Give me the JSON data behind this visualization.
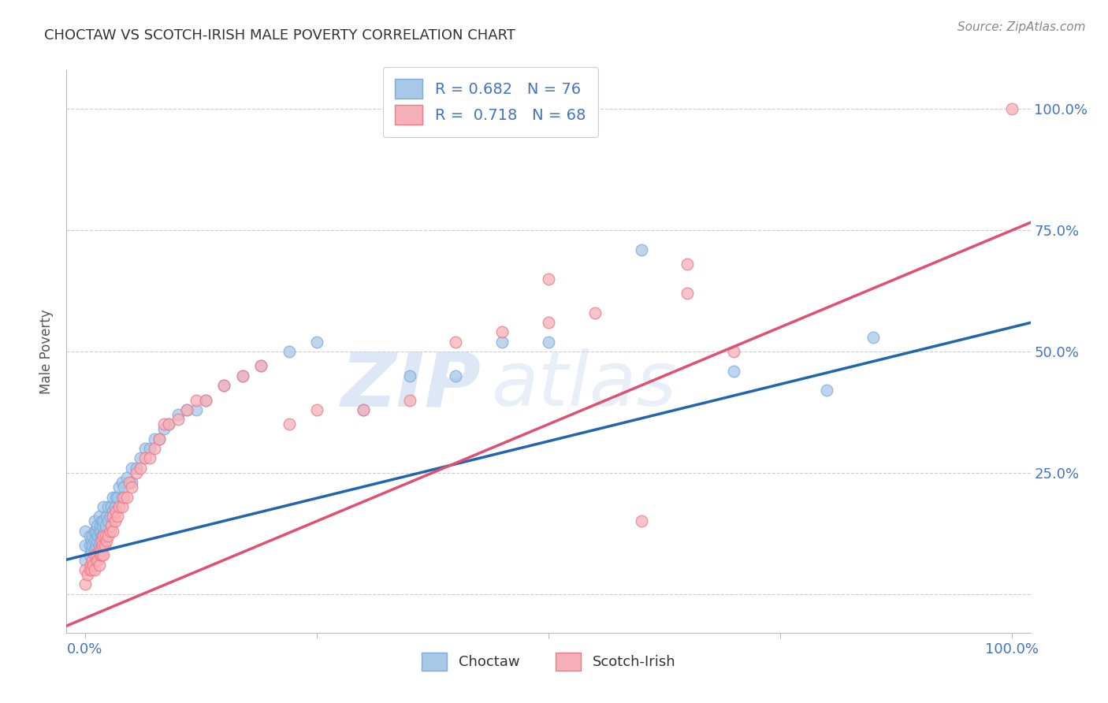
{
  "title": "CHOCTAW VS SCOTCH-IRISH MALE POVERTY CORRELATION CHART",
  "source": "Source: ZipAtlas.com",
  "ylabel": "Male Poverty",
  "xlim": [
    -0.02,
    1.02
  ],
  "ylim": [
    -0.08,
    1.08
  ],
  "x_ticks": [
    0.0,
    0.25,
    0.5,
    0.75,
    1.0
  ],
  "x_tick_labels": [
    "0.0%",
    "",
    "",
    "",
    "100.0%"
  ],
  "y_ticks": [
    0.0,
    0.25,
    0.5,
    0.75,
    1.0
  ],
  "y_tick_labels_right": [
    "",
    "25.0%",
    "50.0%",
    "75.0%",
    "100.0%"
  ],
  "choctaw_color": "#a8c8e8",
  "scotch_irish_color": "#f8b0b8",
  "choctaw_edge_color": "#7aacdc",
  "scotch_irish_edge_color": "#f07888",
  "choctaw_line_color": "#2166ac",
  "scotch_irish_line_color": "#e05070",
  "choctaw_R": 0.682,
  "choctaw_N": 76,
  "scotch_irish_R": 0.718,
  "scotch_irish_N": 68,
  "watermark_zip": "ZIP",
  "watermark_atlas": "atlas",
  "background_color": "#ffffff",
  "grid_color": "#cccccc",
  "tick_label_color": "#4472c4",
  "title_color": "#333333",
  "choctaw_line_intercept": 0.08,
  "choctaw_line_slope": 0.47,
  "scotch_irish_line_intercept": -0.05,
  "scotch_irish_line_slope": 0.8,
  "choctaw_scatter_x": [
    0.0,
    0.0,
    0.0,
    0.005,
    0.005,
    0.005,
    0.007,
    0.007,
    0.008,
    0.008,
    0.01,
    0.01,
    0.01,
    0.01,
    0.012,
    0.012,
    0.013,
    0.013,
    0.014,
    0.015,
    0.015,
    0.015,
    0.016,
    0.016,
    0.017,
    0.018,
    0.018,
    0.019,
    0.02,
    0.02,
    0.02,
    0.021,
    0.022,
    0.023,
    0.025,
    0.025,
    0.027,
    0.028,
    0.03,
    0.03,
    0.032,
    0.033,
    0.035,
    0.037,
    0.04,
    0.04,
    0.042,
    0.045,
    0.05,
    0.05,
    0.055,
    0.06,
    0.065,
    0.07,
    0.075,
    0.08,
    0.085,
    0.09,
    0.1,
    0.11,
    0.12,
    0.13,
    0.15,
    0.17,
    0.19,
    0.22,
    0.25,
    0.3,
    0.35,
    0.4,
    0.45,
    0.5,
    0.6,
    0.7,
    0.8,
    0.85
  ],
  "choctaw_scatter_y": [
    0.07,
    0.1,
    0.13,
    0.08,
    0.1,
    0.12,
    0.09,
    0.11,
    0.1,
    0.12,
    0.09,
    0.11,
    0.13,
    0.15,
    0.1,
    0.13,
    0.11,
    0.14,
    0.12,
    0.1,
    0.13,
    0.16,
    0.11,
    0.14,
    0.13,
    0.12,
    0.15,
    0.14,
    0.12,
    0.15,
    0.18,
    0.13,
    0.14,
    0.16,
    0.15,
    0.18,
    0.16,
    0.18,
    0.17,
    0.2,
    0.18,
    0.2,
    0.2,
    0.22,
    0.2,
    0.23,
    0.22,
    0.24,
    0.23,
    0.26,
    0.26,
    0.28,
    0.3,
    0.3,
    0.32,
    0.32,
    0.34,
    0.35,
    0.37,
    0.38,
    0.38,
    0.4,
    0.43,
    0.45,
    0.47,
    0.5,
    0.52,
    0.38,
    0.45,
    0.45,
    0.52,
    0.52,
    0.71,
    0.46,
    0.42,
    0.53
  ],
  "scotch_irish_scatter_x": [
    0.0,
    0.0,
    0.003,
    0.005,
    0.006,
    0.007,
    0.008,
    0.009,
    0.01,
    0.01,
    0.012,
    0.013,
    0.014,
    0.015,
    0.015,
    0.016,
    0.017,
    0.018,
    0.018,
    0.019,
    0.02,
    0.02,
    0.021,
    0.022,
    0.023,
    0.025,
    0.027,
    0.028,
    0.03,
    0.03,
    0.032,
    0.033,
    0.035,
    0.037,
    0.04,
    0.042,
    0.045,
    0.048,
    0.05,
    0.055,
    0.06,
    0.065,
    0.07,
    0.075,
    0.08,
    0.085,
    0.09,
    0.1,
    0.11,
    0.12,
    0.13,
    0.15,
    0.17,
    0.19,
    0.22,
    0.25,
    0.3,
    0.35,
    0.4,
    0.45,
    0.5,
    0.55,
    0.6,
    0.65,
    0.7,
    1.0,
    0.5,
    0.65
  ],
  "scotch_irish_scatter_y": [
    0.02,
    0.05,
    0.04,
    0.05,
    0.06,
    0.05,
    0.07,
    0.06,
    0.05,
    0.08,
    0.07,
    0.08,
    0.07,
    0.06,
    0.09,
    0.08,
    0.09,
    0.08,
    0.11,
    0.1,
    0.08,
    0.12,
    0.1,
    0.12,
    0.11,
    0.12,
    0.13,
    0.14,
    0.13,
    0.16,
    0.15,
    0.17,
    0.16,
    0.18,
    0.18,
    0.2,
    0.2,
    0.23,
    0.22,
    0.25,
    0.26,
    0.28,
    0.28,
    0.3,
    0.32,
    0.35,
    0.35,
    0.36,
    0.38,
    0.4,
    0.4,
    0.43,
    0.45,
    0.47,
    0.35,
    0.38,
    0.38,
    0.4,
    0.52,
    0.54,
    0.56,
    0.58,
    0.15,
    0.62,
    0.5,
    1.0,
    0.65,
    0.68
  ]
}
